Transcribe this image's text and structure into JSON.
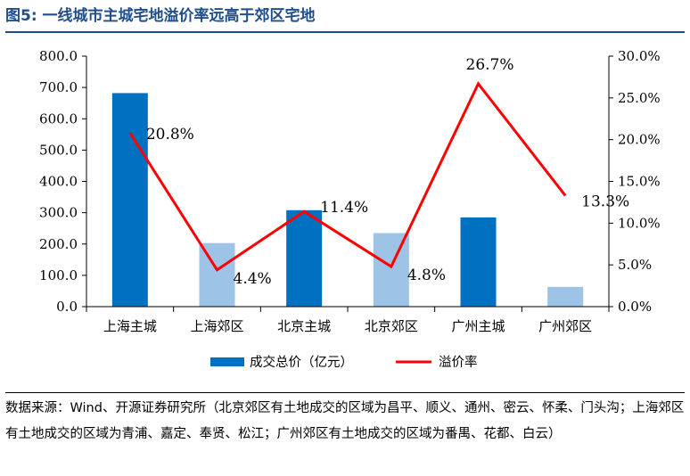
{
  "title": "图5:  一线城市主城宅地溢价率远高于郊区宅地",
  "source": "数据来源：Wind、开源证券研究所（北京郊区有土地成交的区域为昌平、顺义、通州、密云、怀柔、门头沟；上海郊区有土地成交的区域为青浦、嘉定、奉贤、松江；广州郊区有土地成交的区域为番禺、花都、白云）",
  "colors": {
    "main_bar": "#0070c0",
    "suburb_bar": "#9dc3e6",
    "line": "#ff0000",
    "title": "#1f4e8c"
  },
  "chart_data": {
    "type": "bar+line",
    "categories": [
      "上海主城",
      "上海郊区",
      "北京主城",
      "北京郊区",
      "广州主城",
      "广州郊区"
    ],
    "series": [
      {
        "name": "成交总价（亿元）",
        "type": "bar",
        "axis": "left",
        "values": [
          682,
          203,
          308,
          235,
          285,
          63
        ]
      },
      {
        "name": "溢价率",
        "type": "line",
        "axis": "right",
        "values": [
          20.8,
          4.4,
          11.4,
          4.8,
          26.7,
          13.3
        ]
      }
    ],
    "line_labels": [
      "20.8%",
      "4.4%",
      "11.4%",
      "4.8%",
      "26.7%",
      "13.3%"
    ],
    "left_axis": {
      "min": 0,
      "max": 800,
      "ticks": [
        "0.0",
        "100.0",
        "200.0",
        "300.0",
        "400.0",
        "500.0",
        "600.0",
        "700.0",
        "800.0"
      ]
    },
    "right_axis": {
      "min": 0,
      "max": 30,
      "ticks": [
        "0.0%",
        "5.0%",
        "10.0%",
        "15.0%",
        "20.0%",
        "25.0%",
        "30.0%"
      ]
    },
    "legend": {
      "position": "bottom",
      "items": [
        "成交总价（亿元）",
        "溢价率"
      ]
    }
  }
}
